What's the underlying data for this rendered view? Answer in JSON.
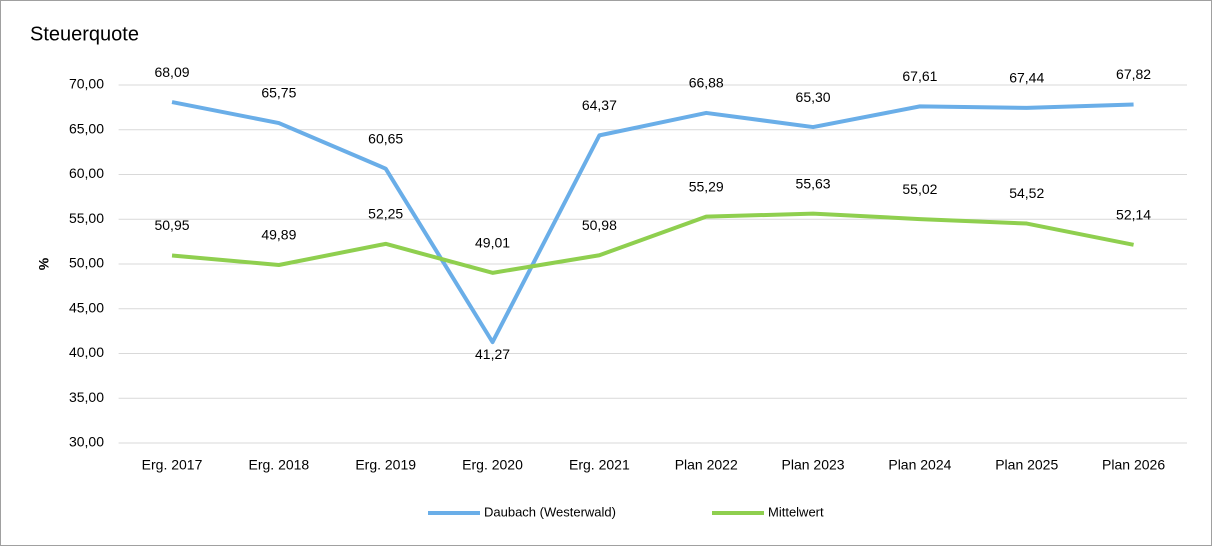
{
  "chart_data": {
    "type": "line",
    "title": "Steuerquote",
    "y_label": "%",
    "categories": [
      "Erg. 2017",
      "Erg. 2018",
      "Erg. 2019",
      "Erg. 2020",
      "Erg. 2021",
      "Plan 2022",
      "Plan 2023",
      "Plan 2024",
      "Plan 2025",
      "Plan 2026"
    ],
    "series": [
      {
        "name": "Daubach (Westerwald)",
        "color": "#6aaee8",
        "values": [
          68.09,
          65.75,
          60.65,
          41.27,
          64.37,
          66.88,
          65.3,
          67.61,
          67.44,
          67.82
        ],
        "value_labels": [
          "68,09",
          "65,75",
          "60,65",
          "41,27",
          "64,37",
          "66,88",
          "65,30",
          "67,61",
          "67,44",
          "67,82"
        ]
      },
      {
        "name": "Mittelwert",
        "color": "#8fcf4f",
        "values": [
          50.95,
          49.89,
          52.25,
          49.01,
          50.98,
          55.29,
          55.63,
          55.02,
          54.52,
          52.14
        ],
        "value_labels": [
          "50,95",
          "49,89",
          "52,25",
          "49,01",
          "50,98",
          "55,29",
          "55,63",
          "55,02",
          "54,52",
          "52,14"
        ]
      }
    ],
    "ylim": [
      30,
      70
    ],
    "yticks": [
      {
        "value": 30,
        "label": "30,00"
      },
      {
        "value": 35,
        "label": "35,00"
      },
      {
        "value": 40,
        "label": "40,00"
      },
      {
        "value": 45,
        "label": "45,00"
      },
      {
        "value": 50,
        "label": "50,00"
      },
      {
        "value": 55,
        "label": "55,00"
      },
      {
        "value": 60,
        "label": "60,00"
      },
      {
        "value": 65,
        "label": "65,00"
      },
      {
        "value": 70,
        "label": "70,00"
      }
    ],
    "grid": true,
    "legend": "bottom"
  }
}
